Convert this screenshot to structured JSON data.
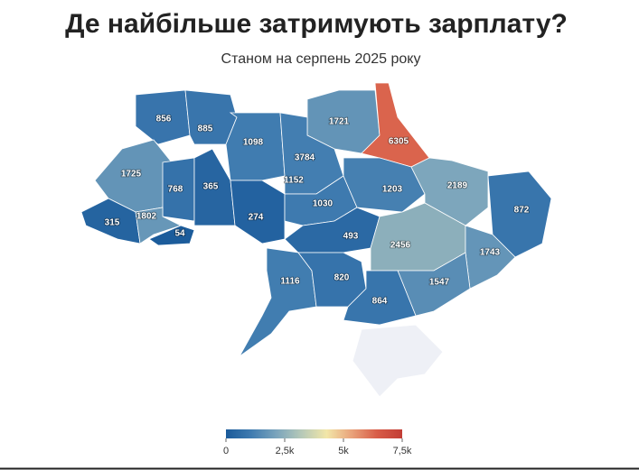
{
  "chart_data": {
    "type": "choropleth",
    "title": "Де найбільше затримують зарплату?",
    "subtitle": "Станом на серпень 2025 року",
    "values": [
      856,
      885,
      1098,
      1721,
      6305,
      3784,
      1152,
      1725,
      768,
      365,
      315,
      1802,
      54,
      274,
      1030,
      1203,
      2189,
      872,
      493,
      2456,
      1743,
      1116,
      820,
      1547,
      864
    ],
    "colorscale": [
      "#1a5a9a",
      "#3f7bb0",
      "#7aa4bc",
      "#b6c9b8",
      "#f2e6a8",
      "#e9a27a",
      "#d85c47",
      "#c23d35"
    ],
    "clim": [
      0,
      7500
    ],
    "cticks": [
      0,
      {
        "value": 2500,
        "label": "2,5k"
      },
      {
        "value": 5000,
        "label": "5k"
      },
      {
        "value": 7500,
        "label": "7,5k"
      }
    ]
  }
}
